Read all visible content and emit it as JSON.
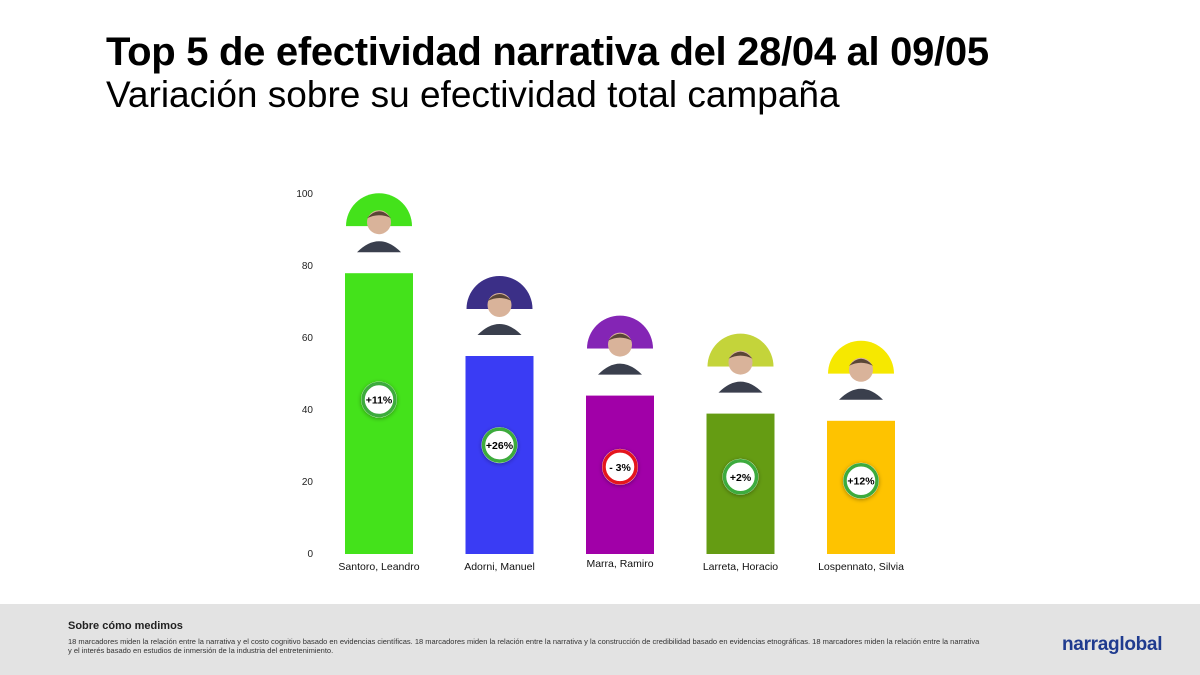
{
  "header": {
    "title": "Top 5 de efectividad narrativa del 28/04 al 09/05",
    "subtitle": "Variación sobre su efectividad total campaña"
  },
  "chart_data": {
    "type": "bar",
    "title": "Top 5 de efectividad narrativa del 28/04 al 09/05",
    "subtitle": "Variación sobre su efectividad total campaña",
    "xlabel": "",
    "ylabel": "",
    "ylim": [
      0,
      100
    ],
    "yticks": [
      0,
      20,
      40,
      60,
      80,
      100
    ],
    "grid": false,
    "categories": [
      "Santoro, Leandro",
      "Adorni, Manuel",
      "Marra, Ramiro",
      "Larreta, Horacio",
      "Lospennato, Silvia"
    ],
    "values": [
      78,
      55,
      44,
      39,
      37
    ],
    "colors": [
      "#44e21b",
      "#3a3cf4",
      "#a100a8",
      "#659c13",
      "#fec300"
    ],
    "photo_ring_colors": [
      "#44e21b",
      "#3b2f87",
      "#8425b5",
      "#c4d43a",
      "#f6e800"
    ],
    "variation_labels": [
      "+11%",
      "+26%",
      "- 3%",
      "+2%",
      "+12%"
    ],
    "variation_status": [
      "positive",
      "positive",
      "negative",
      "positive",
      "positive"
    ],
    "status_colors": {
      "positive": "#3dab3d",
      "negative": "#e4151d"
    }
  },
  "footer": {
    "heading": "Sobre cómo medimos",
    "text": "18 marcadores miden la relación entre la narrativa y el costo cognitivo basado en evidencias científicas. 18 marcadores miden la relación entre la narrativa y la construcción de credibilidad basado en evidencias etnográficas. 18 marcadores miden la relación entre la narrativa y el interés basado en estudios de inmersión de la industria del entretenimiento.",
    "brand": "narraglobal"
  }
}
